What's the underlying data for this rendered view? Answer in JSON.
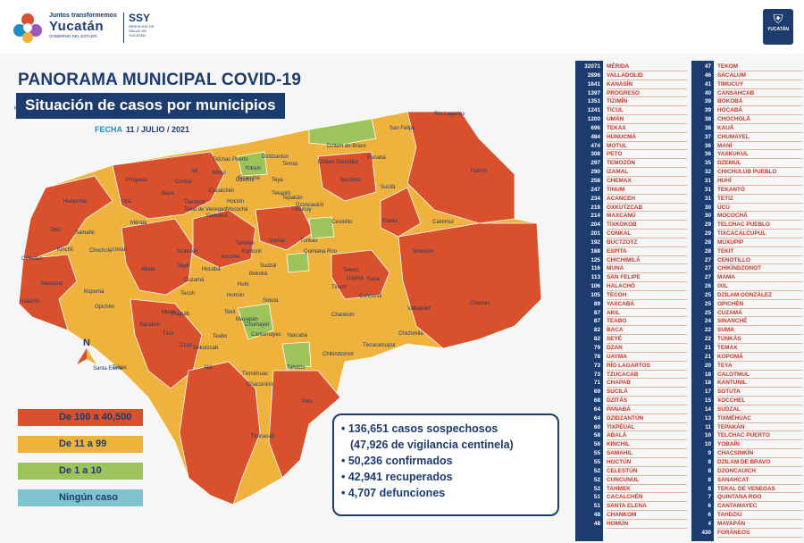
{
  "header": {
    "gov_small": "Juntos transformemos",
    "gov_name": "Yucatán",
    "gov_sub": "GOBIERNO DEL ESTADO",
    "ssy_name": "SSY",
    "ssy_sub": "SERVICIOS DE SALUD DE YUCATÁN",
    "badge_text": "YUCATÁN"
  },
  "title": "PANORAMA MUNICIPAL COVID-19",
  "subtitle": "Situación de casos por municipios",
  "date_label": "FECHA",
  "date_value": "11 / JULIO / 2021",
  "compass": "N",
  "colors": {
    "high": "#d9502c",
    "medium": "#eeb23d",
    "low": "#9dc45a",
    "none": "#7fc3cf",
    "navy": "#1c3b6e"
  },
  "legend": [
    {
      "label": "De 100 a 40,500",
      "color": "#d9502c"
    },
    {
      "label": "De 11 a 99",
      "color": "#eeb23d"
    },
    {
      "label": "De 1 a 10",
      "color": "#9dc45a"
    },
    {
      "label": "Ningún caso",
      "color": "#7fc3cf"
    }
  ],
  "stats": [
    "• 136,651 casos sospechosos",
    "(47,926 de vigilancia centinela)",
    "• 50,236 confirmados",
    "• 42,941 recuperados",
    "• 4,707 defunciones"
  ],
  "map_labels": [
    {
      "name": "Río Lagartos"
    },
    {
      "name": "San Felipe"
    },
    {
      "name": "Dzilam de Bravo"
    },
    {
      "name": "Dzilam González"
    },
    {
      "name": "Panabá"
    },
    {
      "name": "Tizimín"
    },
    {
      "name": "Progreso"
    },
    {
      "name": "Telchac Puerto"
    },
    {
      "name": "Buctzotz"
    },
    {
      "name": "Sucilá"
    },
    {
      "name": "Hunucmá"
    },
    {
      "name": "Mérida"
    },
    {
      "name": "Izamal"
    },
    {
      "name": "Cenotillo"
    },
    {
      "name": "Espita"
    },
    {
      "name": "Calotmul"
    },
    {
      "name": "Celestún"
    },
    {
      "name": "Kinchil"
    },
    {
      "name": "Umán"
    },
    {
      "name": "Temozón"
    },
    {
      "name": "Maxcanú"
    },
    {
      "name": "Kopomá"
    },
    {
      "name": "Tecoh"
    },
    {
      "name": "Halachó"
    },
    {
      "name": "Opichén"
    },
    {
      "name": "Valladolid"
    },
    {
      "name": "Chemax"
    },
    {
      "name": "Tinum"
    },
    {
      "name": "Uayma"
    },
    {
      "name": "Sotuta"
    },
    {
      "name": "Chankom"
    },
    {
      "name": "Yaxcabá"
    },
    {
      "name": "Muna"
    },
    {
      "name": "Ticul"
    },
    {
      "name": "Tekax"
    },
    {
      "name": "Santa Elena"
    },
    {
      "name": "Oxkutzcab"
    },
    {
      "name": "Tzucacab"
    },
    {
      "name": "Peto"
    },
    {
      "name": "Tahdziu"
    },
    {
      "name": "Chacsinkín"
    },
    {
      "name": "Chikindzonot"
    },
    {
      "name": "Tixcacalcupul"
    },
    {
      "name": "Cantamayec"
    },
    {
      "name": "Mayapán"
    },
    {
      "name": "Teabo"
    },
    {
      "name": "Akil"
    },
    {
      "name": "Tekit"
    },
    {
      "name": "Homún"
    },
    {
      "name": "Huhí"
    },
    {
      "name": "Sacalum"
    },
    {
      "name": "Chapab"
    },
    {
      "name": "Dzán"
    },
    {
      "name": "Tixméhuac"
    },
    {
      "name": "Chumayel"
    },
    {
      "name": "Tunkás"
    },
    {
      "name": "Quintana Roo"
    },
    {
      "name": "Kaua"
    },
    {
      "name": "Cuncunul"
    },
    {
      "name": "Tekom"
    },
    {
      "name": "Chichimilá"
    },
    {
      "name": "Temax"
    },
    {
      "name": "Yobaín"
    },
    {
      "name": "Sinanché"
    },
    {
      "name": "Dzidzantún"
    },
    {
      "name": "Ixil"
    },
    {
      "name": "Motul"
    },
    {
      "name": "Baca"
    },
    {
      "name": "Conkal"
    },
    {
      "name": "Tetiz"
    },
    {
      "name": "Samahil"
    },
    {
      "name": "Chocholá"
    },
    {
      "name": "Abalá"
    },
    {
      "name": "Acanceh"
    },
    {
      "name": "Cuzamá"
    },
    {
      "name": "Hocabá"
    },
    {
      "name": "Xocchel"
    },
    {
      "name": "Tekantó"
    },
    {
      "name": "Cacalchén"
    },
    {
      "name": "Tepakán"
    },
    {
      "name": "Dzoncauich"
    },
    {
      "name": "Tixkokob"
    },
    {
      "name": "Kantunil"
    },
    {
      "name": "Sudzal"
    },
    {
      "name": "Teya"
    },
    {
      "name": "Dzemul"
    },
    {
      "name": "Ucú"
    },
    {
      "name": "Seyé"
    },
    {
      "name": "Tahmek"
    },
    {
      "name": "Hoctún"
    },
    {
      "name": "Mocochá"
    },
    {
      "name": "Bokobá"
    },
    {
      "name": "Timucuy"
    },
    {
      "name": "Tekal de Venegas"
    },
    {
      "name": "Yaxkukul"
    },
    {
      "name": "Kanasín"
    }
  ],
  "municipalities_left": [
    {
      "count": "32071",
      "name": "MÉRIDA"
    },
    {
      "count": "2896",
      "name": "VALLADOLID"
    },
    {
      "count": "1641",
      "name": "KANASÍN"
    },
    {
      "count": "1397",
      "name": "PROGRESO"
    },
    {
      "count": "1351",
      "name": "TIZIMÍN"
    },
    {
      "count": "1241",
      "name": "TICUL"
    },
    {
      "count": "1200",
      "name": "UMÁN"
    },
    {
      "count": "696",
      "name": "TEKAX"
    },
    {
      "count": "484",
      "name": "HUNUCMÁ"
    },
    {
      "count": "474",
      "name": "MOTUL"
    },
    {
      "count": "308",
      "name": "PETO"
    },
    {
      "count": "297",
      "name": "TEMOZÓN"
    },
    {
      "count": "290",
      "name": "IZAMAL"
    },
    {
      "count": "258",
      "name": "CHEMAX"
    },
    {
      "count": "247",
      "name": "TINUM"
    },
    {
      "count": "234",
      "name": "ACANCEH"
    },
    {
      "count": "219",
      "name": "OXKUTZCAB"
    },
    {
      "count": "214",
      "name": "MAXCANÚ"
    },
    {
      "count": "204",
      "name": "TIXKOKOB"
    },
    {
      "count": "201",
      "name": "CONKAL"
    },
    {
      "count": "192",
      "name": "BUCTZOTZ"
    },
    {
      "count": "168",
      "name": "ESPITA"
    },
    {
      "count": "125",
      "name": "CHICHIMILÁ"
    },
    {
      "count": "116",
      "name": "MUNA"
    },
    {
      "count": "113",
      "name": "SAN FELIPE"
    },
    {
      "count": "106",
      "name": "HALACHÓ"
    },
    {
      "count": "105",
      "name": "TECOH"
    },
    {
      "count": "89",
      "name": "YAXCABÁ"
    },
    {
      "count": "87",
      "name": "AKIL"
    },
    {
      "count": "87",
      "name": "TEABO"
    },
    {
      "count": "82",
      "name": "BACA"
    },
    {
      "count": "82",
      "name": "SEYÉ"
    },
    {
      "count": "79",
      "name": "DZAN"
    },
    {
      "count": "78",
      "name": "UAYMA"
    },
    {
      "count": "73",
      "name": "RÍO LAGARTOS"
    },
    {
      "count": "73",
      "name": "TZUCACAB"
    },
    {
      "count": "71",
      "name": "CHAPAB"
    },
    {
      "count": "69",
      "name": "SUCILÁ"
    },
    {
      "count": "68",
      "name": "DZITÁS"
    },
    {
      "count": "64",
      "name": "PANABÁ"
    },
    {
      "count": "64",
      "name": "DZIDZANTÚN"
    },
    {
      "count": "60",
      "name": "TIXPÉUAL"
    },
    {
      "count": "58",
      "name": "ABALÁ"
    },
    {
      "count": "56",
      "name": "KINCHIL"
    },
    {
      "count": "55",
      "name": "SAMAHIL"
    },
    {
      "count": "55",
      "name": "HOCTÚN"
    },
    {
      "count": "52",
      "name": "CELESTÚN"
    },
    {
      "count": "52",
      "name": "CUNCUNUL"
    },
    {
      "count": "52",
      "name": "TAHMEK"
    },
    {
      "count": "51",
      "name": "CACALCHÉN"
    },
    {
      "count": "51",
      "name": "SANTA ELENA"
    },
    {
      "count": "48",
      "name": "CHANKOM"
    },
    {
      "count": "48",
      "name": "HOMÚN"
    }
  ],
  "municipalities_right": [
    {
      "count": "47",
      "name": "TEKOM"
    },
    {
      "count": "46",
      "name": "SACALUM"
    },
    {
      "count": "41",
      "name": "TIMUCUY"
    },
    {
      "count": "40",
      "name": "CANSAHCAB"
    },
    {
      "count": "39",
      "name": "BOKOBÁ"
    },
    {
      "count": "39",
      "name": "HOCABÁ"
    },
    {
      "count": "38",
      "name": "CHOCHOLÁ"
    },
    {
      "count": "38",
      "name": "KAUÁ"
    },
    {
      "count": "37",
      "name": "CHUMAYEL"
    },
    {
      "count": "36",
      "name": "MANÍ"
    },
    {
      "count": "36",
      "name": "YAXKUKUL"
    },
    {
      "count": "35",
      "name": "DZEMUL"
    },
    {
      "count": "32",
      "name": "CHICHULUB PUEBLO"
    },
    {
      "count": "31",
      "name": "HUHÍ"
    },
    {
      "count": "31",
      "name": "TEKANTÓ"
    },
    {
      "count": "31",
      "name": "TETIZ"
    },
    {
      "count": "30",
      "name": "UCÚ"
    },
    {
      "count": "30",
      "name": "MOCOCHÁ"
    },
    {
      "count": "29",
      "name": "TELCHAC PUEBLO"
    },
    {
      "count": "29",
      "name": "TIXCACALCUPUL"
    },
    {
      "count": "28",
      "name": "MUXUPIP"
    },
    {
      "count": "28",
      "name": "TEKIT"
    },
    {
      "count": "27",
      "name": "CENOTILLO"
    },
    {
      "count": "27",
      "name": "CHIKINDZONOT"
    },
    {
      "count": "27",
      "name": "MAMA"
    },
    {
      "count": "26",
      "name": "IXIL"
    },
    {
      "count": "25",
      "name": "DZILAM GONZÁLEZ"
    },
    {
      "count": "25",
      "name": "OPICHÉN"
    },
    {
      "count": "25",
      "name": "CUZAMÁ"
    },
    {
      "count": "24",
      "name": "SINANCHÉ"
    },
    {
      "count": "22",
      "name": "SUMA"
    },
    {
      "count": "22",
      "name": "TUNKÁS"
    },
    {
      "count": "21",
      "name": "TEMAX"
    },
    {
      "count": "21",
      "name": "KOPOMÁ"
    },
    {
      "count": "20",
      "name": "TEYA"
    },
    {
      "count": "18",
      "name": "CALOTMUL"
    },
    {
      "count": "18",
      "name": "KANTUNIL"
    },
    {
      "count": "17",
      "name": "SOTUTA"
    },
    {
      "count": "15",
      "name": "XOCCHEL"
    },
    {
      "count": "14",
      "name": "SUDZAL"
    },
    {
      "count": "13",
      "name": "TIXMÉHUAC"
    },
    {
      "count": "11",
      "name": "TEPAKÁN"
    },
    {
      "count": "10",
      "name": "TELCHAC PUERTO"
    },
    {
      "count": "10",
      "name": "YOBAÍN"
    },
    {
      "count": "9",
      "name": "CHACSINKÍN"
    },
    {
      "count": "8",
      "name": "DZILAM DE BRAVO"
    },
    {
      "count": "8",
      "name": "DZONCAUICH"
    },
    {
      "count": "8",
      "name": "SANAHCAT"
    },
    {
      "count": "8",
      "name": "TEKAL DE VENEGAS"
    },
    {
      "count": "7",
      "name": "QUINTANA ROO"
    },
    {
      "count": "6",
      "name": "CANTAMAYEC"
    },
    {
      "count": "6",
      "name": "TAHDZIÚ"
    },
    {
      "count": "4",
      "name": "MAYAPÁN"
    },
    {
      "count": "430",
      "name": "FORÁNEOS"
    }
  ]
}
